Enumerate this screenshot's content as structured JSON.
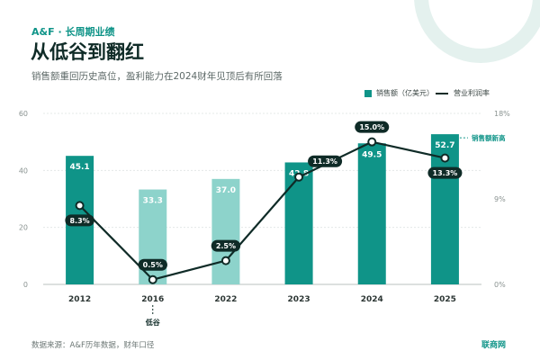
{
  "header": {
    "kicker": "A&F · 长周期业绩",
    "title": "从低谷到翻红",
    "subtitle": "销售额重回历史高位，盈利能力在2024财年见顶后有所回落"
  },
  "legend": {
    "bar_label": "销售额（亿美元）",
    "line_label": "营业利润率"
  },
  "annotations": {
    "low_label": "低谷",
    "high_label": "销售额新高"
  },
  "footer": {
    "source": "数据来源：A&F历年数据，财年口径",
    "brand": "联商网"
  },
  "colors": {
    "bar_dark": "#0f9488",
    "bar_light": "#8dd3cb",
    "line": "#0f2b27",
    "accent": "#0f9488"
  },
  "chart_data": {
    "type": "bar",
    "categories": [
      "2012",
      "2016",
      "2022",
      "2023",
      "2024",
      "2025"
    ],
    "series": [
      {
        "name": "销售额（亿美元）",
        "type": "bar",
        "axis": "left",
        "values": [
          45.1,
          33.3,
          37.0,
          42.8,
          49.5,
          52.7
        ],
        "labels": [
          "45.1",
          "33.3",
          "37.0",
          "42.8",
          "49.5",
          "52.7"
        ],
        "highlight": [
          true,
          false,
          false,
          true,
          true,
          true
        ]
      },
      {
        "name": "营业利润率",
        "type": "line",
        "axis": "right",
        "values": [
          8.3,
          0.5,
          2.5,
          11.3,
          15.0,
          13.3
        ],
        "labels": [
          "8.3%",
          "0.5%",
          "2.5%",
          "11.3%",
          "15.0%",
          "13.3%"
        ]
      }
    ],
    "y_left": {
      "min": 0,
      "max": 60,
      "ticks": [
        "0",
        "20",
        "40",
        "60"
      ]
    },
    "y_right": {
      "min": 0,
      "max": 18,
      "ticks": [
        "0%",
        "9%",
        "18%"
      ]
    },
    "grid": true,
    "legend_position": "top-right"
  }
}
